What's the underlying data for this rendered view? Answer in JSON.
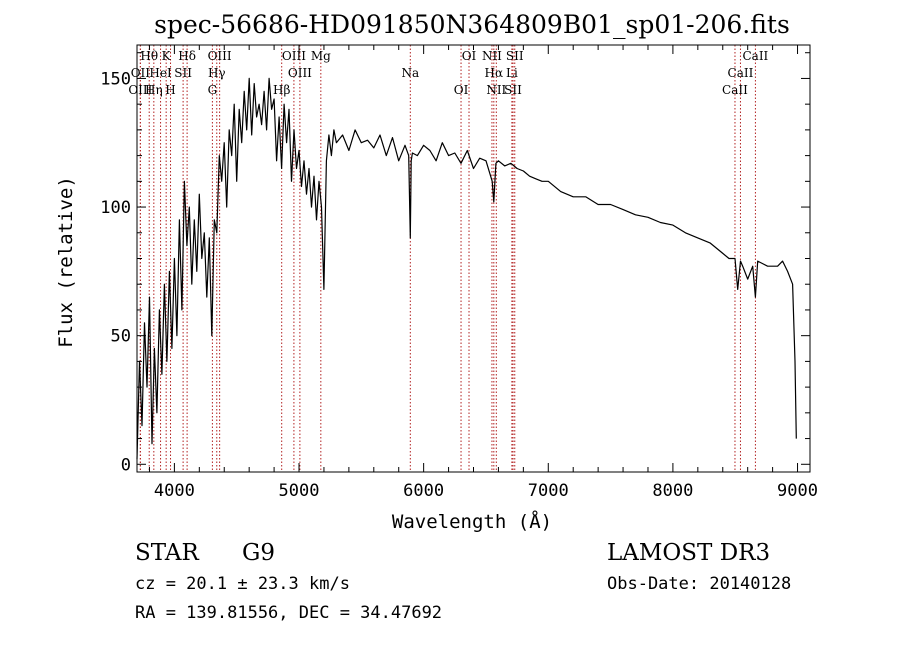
{
  "chart_data": {
    "type": "line",
    "title": "spec-56686-HD091850N364809B01_sp01-206.fits",
    "xlabel": "Wavelength (Å)",
    "ylabel": "Flux (relative)",
    "xlim": [
      3700,
      9100
    ],
    "ylim": [
      -3,
      163
    ],
    "x_ticks": [
      4000,
      5000,
      6000,
      7000,
      8000,
      9000
    ],
    "y_ticks": [
      0,
      50,
      100,
      150
    ],
    "series": [
      {
        "name": "spectrum",
        "x": [
          3700,
          3720,
          3740,
          3760,
          3780,
          3800,
          3820,
          3840,
          3860,
          3880,
          3900,
          3920,
          3940,
          3960,
          3980,
          4000,
          4020,
          4040,
          4060,
          4080,
          4100,
          4120,
          4140,
          4160,
          4180,
          4200,
          4220,
          4240,
          4260,
          4280,
          4300,
          4320,
          4340,
          4360,
          4380,
          4400,
          4420,
          4440,
          4460,
          4480,
          4500,
          4520,
          4540,
          4560,
          4580,
          4600,
          4620,
          4640,
          4660,
          4680,
          4700,
          4720,
          4740,
          4760,
          4780,
          4800,
          4820,
          4840,
          4860,
          4880,
          4900,
          4920,
          4940,
          4960,
          4980,
          5000,
          5020,
          5040,
          5060,
          5080,
          5100,
          5120,
          5140,
          5160,
          5180,
          5200,
          5220,
          5240,
          5260,
          5280,
          5300,
          5350,
          5400,
          5450,
          5500,
          5550,
          5600,
          5650,
          5700,
          5750,
          5800,
          5850,
          5880,
          5893,
          5900,
          5910,
          5950,
          6000,
          6050,
          6100,
          6150,
          6200,
          6250,
          6300,
          6350,
          6400,
          6450,
          6500,
          6550,
          6563,
          6580,
          6600,
          6650,
          6700,
          6750,
          6800,
          6850,
          6900,
          6950,
          7000,
          7100,
          7200,
          7300,
          7400,
          7500,
          7600,
          7700,
          7800,
          7900,
          8000,
          8100,
          8200,
          8300,
          8400,
          8450,
          8498,
          8520,
          8542,
          8560,
          8600,
          8640,
          8662,
          8680,
          8720,
          8760,
          8800,
          8840,
          8880,
          8920,
          8960,
          8980,
          8990
        ],
        "y": [
          2,
          40,
          15,
          55,
          30,
          65,
          8,
          45,
          20,
          60,
          35,
          70,
          40,
          75,
          45,
          80,
          50,
          95,
          60,
          110,
          85,
          100,
          70,
          95,
          75,
          105,
          80,
          90,
          65,
          88,
          50,
          95,
          90,
          120,
          110,
          125,
          100,
          130,
          120,
          140,
          110,
          138,
          125,
          145,
          130,
          150,
          128,
          148,
          135,
          140,
          132,
          145,
          130,
          150,
          138,
          142,
          118,
          135,
          115,
          140,
          125,
          138,
          110,
          130,
          115,
          122,
          108,
          118,
          105,
          115,
          100,
          112,
          95,
          110,
          100,
          68,
          118,
          128,
          120,
          130,
          125,
          128,
          122,
          130,
          125,
          126,
          123,
          128,
          120,
          127,
          118,
          124,
          120,
          88,
          118,
          121,
          120,
          124,
          122,
          118,
          125,
          120,
          121,
          117,
          122,
          115,
          119,
          118,
          110,
          102,
          117,
          118,
          116,
          117,
          115,
          114,
          112,
          111,
          110,
          110,
          106,
          104,
          104,
          101,
          101,
          99,
          97,
          96,
          94,
          93,
          90,
          88,
          86,
          82,
          80,
          80,
          68,
          79,
          77,
          72,
          77,
          65,
          79,
          78,
          77,
          77,
          77,
          79,
          75,
          70,
          40,
          10
        ]
      }
    ],
    "spectral_lines": [
      {
        "name": "Hθ",
        "x": 3798
      },
      {
        "name": "OII",
        "x": 3727
      },
      {
        "name": "OIII",
        "x": 3727
      },
      {
        "name": "K",
        "x": 3934
      },
      {
        "name": "HeI",
        "x": 3889
      },
      {
        "name": "Hη",
        "x": 3835
      },
      {
        "name": "Hδ",
        "x": 4102
      },
      {
        "name": "SII",
        "x": 4070
      },
      {
        "name": "H",
        "x": 3969
      },
      {
        "name": "OIII",
        "x": 4363
      },
      {
        "name": "Hγ",
        "x": 4340
      },
      {
        "name": "G",
        "x": 4305
      },
      {
        "name": "OIII",
        "x": 4959
      },
      {
        "name": "OIII",
        "x": 5007
      },
      {
        "name": "Hβ",
        "x": 4861
      },
      {
        "name": "Mg",
        "x": 5175
      },
      {
        "name": "Na",
        "x": 5893
      },
      {
        "name": "OI",
        "x": 6300
      },
      {
        "name": "OI",
        "x": 6364
      },
      {
        "name": "Hα",
        "x": 6563
      },
      {
        "name": "SII",
        "x": 6717
      },
      {
        "name": "NII",
        "x": 6548
      },
      {
        "name": "Li",
        "x": 6708
      },
      {
        "name": "NII",
        "x": 6583
      },
      {
        "name": "SII",
        "x": 6731
      },
      {
        "name": "CaII",
        "x": 8542
      },
      {
        "name": "CaII",
        "x": 8498
      },
      {
        "name": "CaII",
        "x": 8662
      }
    ]
  },
  "info": {
    "object_class": "STAR",
    "subclass": "G9",
    "survey": "LAMOST DR3",
    "cz": "cz = 20.1 ± 23.3 km/s",
    "obs_date": "Obs-Date: 20140128",
    "coords": "RA = 139.81556, DEC =  34.47692"
  },
  "colors": {
    "spectrum": "#000000",
    "line_markers": "#b22222"
  }
}
